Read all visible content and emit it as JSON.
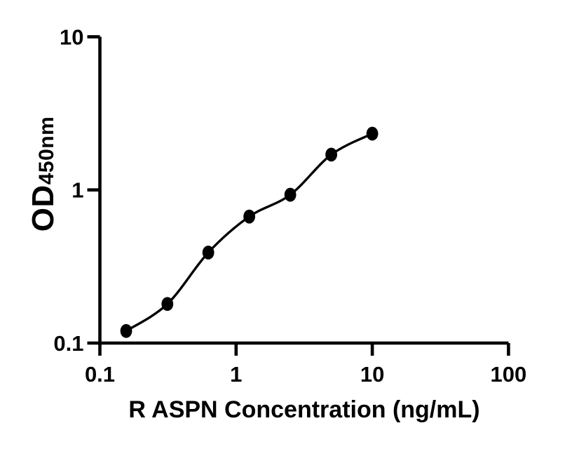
{
  "figure": {
    "background_color": "#ffffff",
    "foreground_color": "#000000"
  },
  "chart_data": {
    "type": "scatter",
    "title": "",
    "xlabel": "R ASPN Concentration (ng/mL)",
    "ylabel_main": "OD",
    "ylabel_sub": "450nm",
    "x_scale": "log",
    "y_scale": "log",
    "x_range": [
      0.1,
      100
    ],
    "y_range": [
      0.1,
      10
    ],
    "x_ticks": [
      "0.1",
      "1",
      "10",
      "100"
    ],
    "x_tick_values": [
      0.1,
      1,
      10,
      100
    ],
    "y_ticks": [
      "0.1",
      "1",
      "10"
    ],
    "y_tick_values": [
      0.1,
      1,
      10
    ],
    "grid": false,
    "legend": "none",
    "series": [
      {
        "name": "standard-curve",
        "marker": "filled-ellipse",
        "line": "smooth-fit",
        "color": "#000000",
        "x": [
          0.156,
          0.313,
          0.625,
          1.25,
          2.5,
          5,
          10
        ],
        "y": [
          0.12,
          0.18,
          0.39,
          0.67,
          0.93,
          1.7,
          2.33
        ]
      }
    ]
  }
}
